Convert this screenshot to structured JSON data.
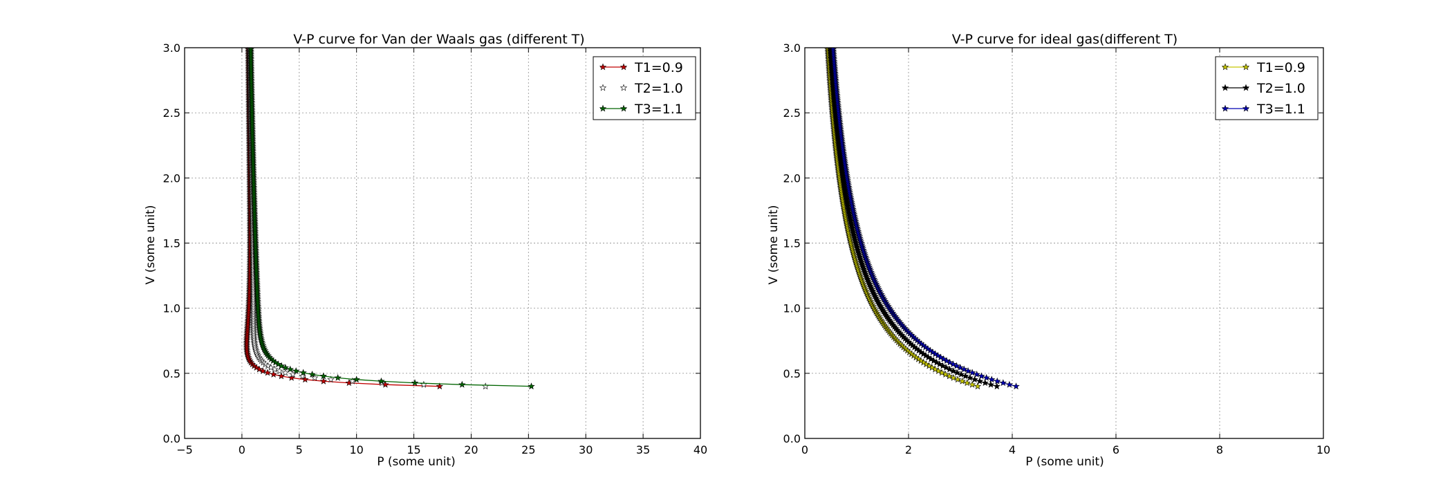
{
  "chart_data": [
    {
      "type": "line",
      "model": "vdw",
      "title": "V-P curve for Van der Waals gas (different T)",
      "xlabel": "P (some unit)",
      "ylabel": "V (some unit)",
      "xlim": [
        -5,
        40
      ],
      "ylim": [
        0,
        3
      ],
      "xticks": [
        -5,
        0,
        5,
        10,
        15,
        20,
        25,
        30,
        35,
        40
      ],
      "yticks": [
        0.0,
        0.5,
        1.0,
        1.5,
        2.0,
        2.5,
        3.0
      ],
      "xtick_labels": [
        "−5",
        "0",
        "5",
        "10",
        "15",
        "20",
        "25",
        "30",
        "35",
        "40"
      ],
      "ytick_labels": [
        "0.0",
        "0.5",
        "1.0",
        "1.5",
        "2.0",
        "2.5",
        "3.0"
      ],
      "grid": true,
      "legend_position": "top-right",
      "v_range": [
        0.4,
        3.0
      ],
      "series": [
        {
          "name": "T1=0.9",
          "T": 0.9,
          "line_color": "#c00000",
          "marker_fill": "#c00000",
          "line": true
        },
        {
          "name": "T2=1.0",
          "T": 1.0,
          "line_color": "#000000",
          "marker_fill": "#ffffff",
          "line": false
        },
        {
          "name": "T3=1.1",
          "T": 1.1,
          "line_color": "#006400",
          "marker_fill": "#006400",
          "line": true
        }
      ]
    },
    {
      "type": "line",
      "model": "ideal",
      "title": "V-P curve for  ideal gas(different T)",
      "xlabel": "P (some unit)",
      "ylabel": "V (some unit)",
      "xlim": [
        0,
        10
      ],
      "ylim": [
        0,
        3
      ],
      "xticks": [
        0,
        2,
        4,
        6,
        8,
        10
      ],
      "yticks": [
        0.0,
        0.5,
        1.0,
        1.5,
        2.0,
        2.5,
        3.0
      ],
      "xtick_labels": [
        "0",
        "2",
        "4",
        "6",
        "8",
        "10"
      ],
      "ytick_labels": [
        "0.0",
        "0.5",
        "1.0",
        "1.5",
        "2.0",
        "2.5",
        "3.0"
      ],
      "grid": true,
      "legend_position": "top-right",
      "v_range": [
        0.4,
        3.0
      ],
      "series": [
        {
          "name": "T1=0.9",
          "T": 0.9,
          "line_color": "#c8c800",
          "marker_fill": "#c8c800",
          "line": true
        },
        {
          "name": "T2=1.0",
          "T": 1.0,
          "line_color": "#000000",
          "marker_fill": "#000000",
          "line": true
        },
        {
          "name": "T3=1.1",
          "T": 1.1,
          "line_color": "#0000b4",
          "marker_fill": "#0000b4",
          "line": true
        }
      ]
    }
  ]
}
